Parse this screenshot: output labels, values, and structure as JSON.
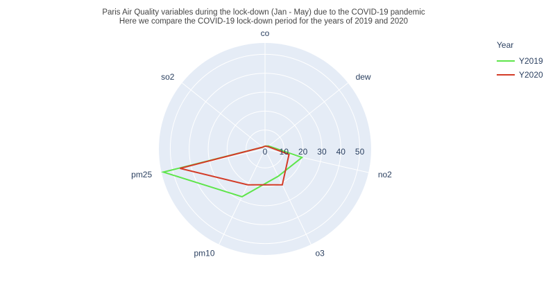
{
  "chart_data": {
    "type": "line",
    "subtype": "polar-radar",
    "title": "Paris Air Quality variables during the lock-down (Jan - May) due to the COVID-19 pandemic",
    "subtitle": "Here we compare the COVID-19 lock-down period for the years of 2019 and 2020",
    "categories": [
      "co",
      "dew",
      "no2",
      "o3",
      "pm10",
      "pm25",
      "so2"
    ],
    "radial_ticks": [
      0,
      10,
      20,
      30,
      40,
      50
    ],
    "radial_range": [
      0,
      56
    ],
    "angular_start_deg": 90,
    "angular_direction": "clockwise",
    "legend_title": "Year",
    "legend_position": "top-right",
    "grid": true,
    "series": [
      {
        "name": "Y2019",
        "color": "#5ee54a",
        "values": [
          1.5,
          2.5,
          20,
          16,
          28,
          55,
          1.5
        ]
      },
      {
        "name": "Y2020",
        "color": "#d33b27",
        "values": [
          1.5,
          2.0,
          13,
          21,
          21,
          46,
          1.5
        ]
      }
    ]
  }
}
